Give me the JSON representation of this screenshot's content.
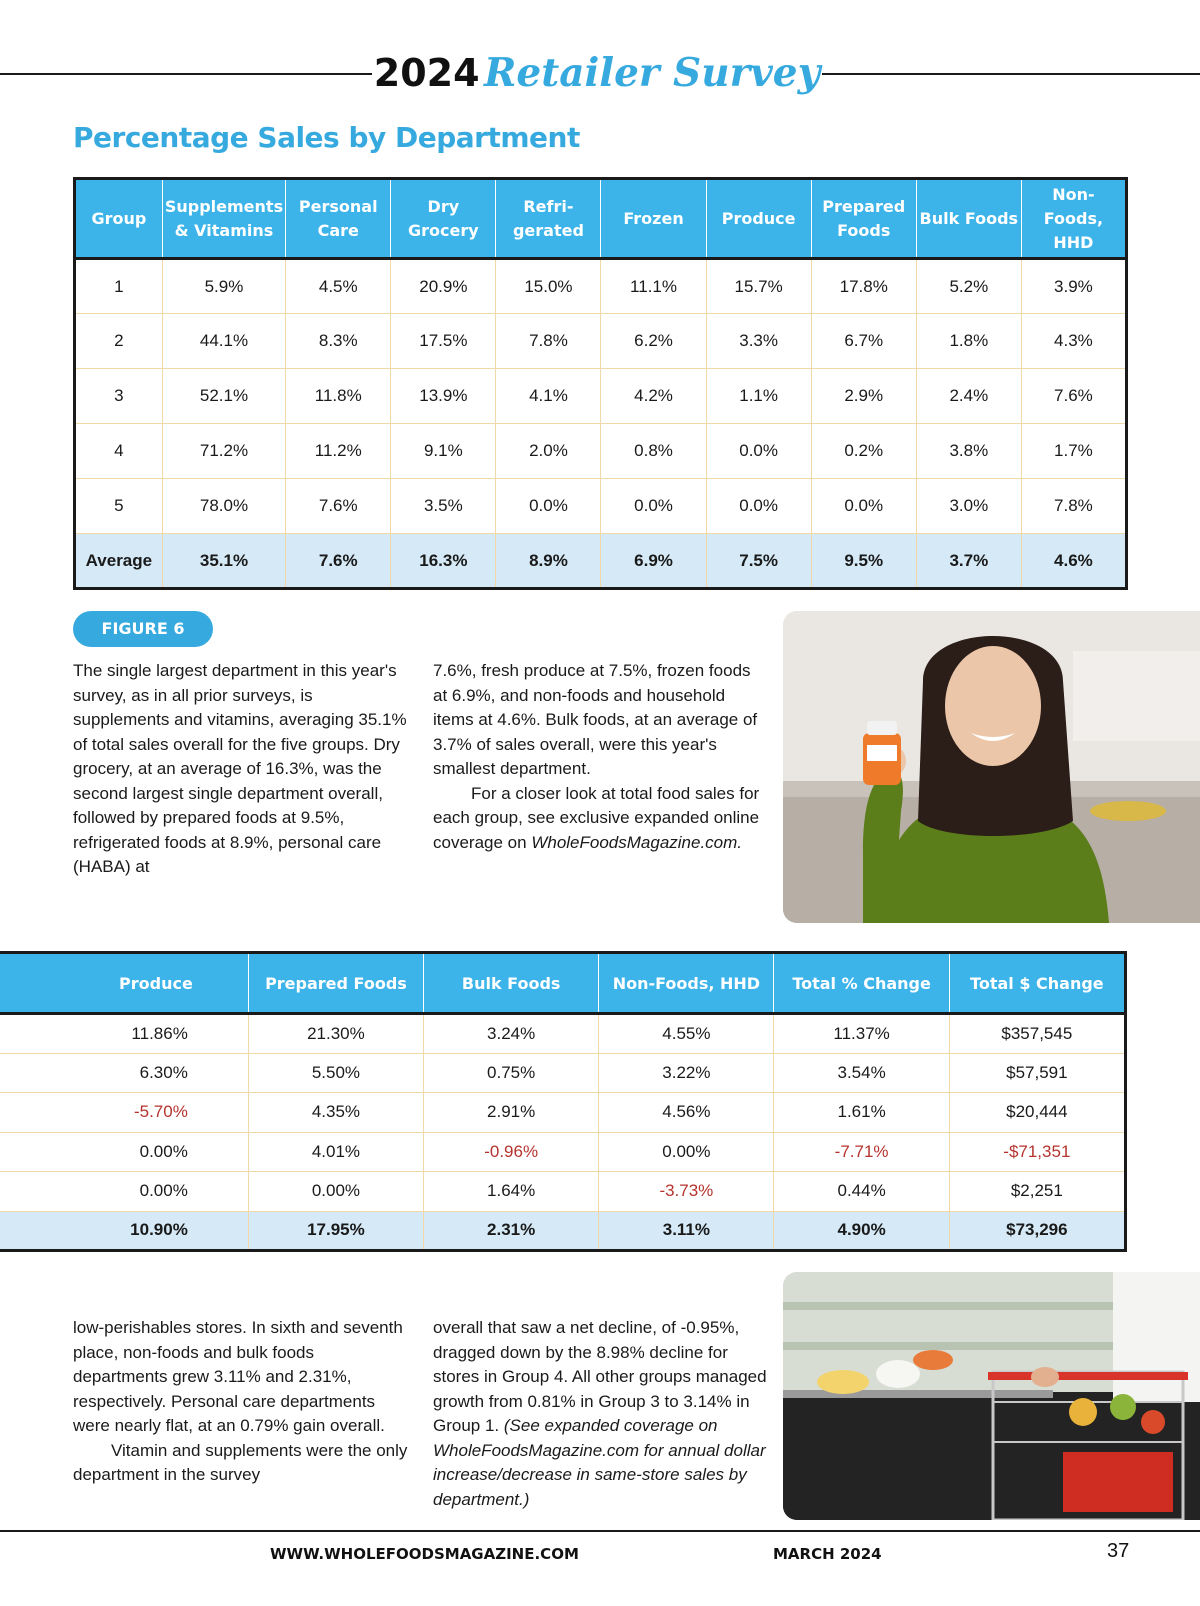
{
  "header": {
    "year": "2024",
    "title": "Retailer Survey"
  },
  "section_title": "Percentage Sales by Department",
  "table1": {
    "headers": [
      "Group",
      "Supplements & Vitamins",
      "Personal Care",
      "Dry Grocery",
      "Refri-\ngerated",
      "Frozen",
      "Produce",
      "Prepared Foods",
      "Bulk Foods",
      "Non-\nFoods,\nHHD"
    ],
    "rows": [
      [
        "1",
        "5.9%",
        "4.5%",
        "20.9%",
        "15.0%",
        "11.1%",
        "15.7%",
        "17.8%",
        "5.2%",
        "3.9%"
      ],
      [
        "2",
        "44.1%",
        "8.3%",
        "17.5%",
        "7.8%",
        "6.2%",
        "3.3%",
        "6.7%",
        "1.8%",
        "4.3%"
      ],
      [
        "3",
        "52.1%",
        "11.8%",
        "13.9%",
        "4.1%",
        "4.2%",
        "1.1%",
        "2.9%",
        "2.4%",
        "7.6%"
      ],
      [
        "4",
        "71.2%",
        "11.2%",
        "9.1%",
        "2.0%",
        "0.8%",
        "0.0%",
        "0.2%",
        "3.8%",
        "1.7%"
      ],
      [
        "5",
        "78.0%",
        "7.6%",
        "3.5%",
        "0.0%",
        "0.0%",
        "0.0%",
        "0.0%",
        "3.0%",
        "7.8%"
      ]
    ],
    "average": [
      "Average",
      "35.1%",
      "7.6%",
      "16.3%",
      "8.9%",
      "6.9%",
      "7.5%",
      "9.5%",
      "3.7%",
      "4.6%"
    ]
  },
  "figure_label": "FIGURE 6",
  "body1": {
    "col1": "The single largest department in this year's survey, as in all prior surveys, is supplements and vitamins, averaging 35.1% of total sales overall for the five groups. Dry grocery, at an average of 16.3%, was the second largest single department overall, followed by prepared foods at 9.5%, refrigerated foods at 8.9%, personal care (HABA) at",
    "col2_p1": "7.6%, fresh produce at 7.5%, frozen foods at 6.9%, and non-foods and household items at 4.6%. Bulk foods, at an average of 3.7% of sales overall, were this year's smallest department.",
    "col2_p2": "For a closer look at total food sales for each group, see exclusive expanded online coverage on",
    "col2_link": "WholeFoodsMagazine.com."
  },
  "table2": {
    "headers": [
      "Produce",
      "Prepared Foods",
      "Bulk Foods",
      "Non-Foods, HHD",
      "Total % Change",
      "Total $ Change"
    ],
    "rows": [
      [
        {
          "v": "11.86%",
          "neg": false
        },
        {
          "v": "21.30%",
          "neg": false
        },
        {
          "v": "3.24%",
          "neg": false
        },
        {
          "v": "4.55%",
          "neg": false
        },
        {
          "v": "11.37%",
          "neg": false
        },
        {
          "v": "$357,545",
          "neg": false
        }
      ],
      [
        {
          "v": "6.30%",
          "neg": false
        },
        {
          "v": "5.50%",
          "neg": false
        },
        {
          "v": "0.75%",
          "neg": false
        },
        {
          "v": "3.22%",
          "neg": false
        },
        {
          "v": "3.54%",
          "neg": false
        },
        {
          "v": "$57,591",
          "neg": false
        }
      ],
      [
        {
          "v": "-5.70%",
          "neg": true
        },
        {
          "v": "4.35%",
          "neg": false
        },
        {
          "v": "2.91%",
          "neg": false
        },
        {
          "v": "4.56%",
          "neg": false
        },
        {
          "v": "1.61%",
          "neg": false
        },
        {
          "v": "$20,444",
          "neg": false
        }
      ],
      [
        {
          "v": "0.00%",
          "neg": false
        },
        {
          "v": "4.01%",
          "neg": false
        },
        {
          "v": "-0.96%",
          "neg": true
        },
        {
          "v": "0.00%",
          "neg": false
        },
        {
          "v": "-7.71%",
          "neg": true
        },
        {
          "v": "-$71,351",
          "neg": true
        }
      ],
      [
        {
          "v": "0.00%",
          "neg": false
        },
        {
          "v": "0.00%",
          "neg": false
        },
        {
          "v": "1.64%",
          "neg": false
        },
        {
          "v": "-3.73%",
          "neg": true
        },
        {
          "v": "0.44%",
          "neg": false
        },
        {
          "v": "$2,251",
          "neg": false
        }
      ]
    ],
    "average": [
      "10.90%",
      "17.95%",
      "2.31%",
      "3.11%",
      "4.90%",
      "$73,296"
    ]
  },
  "body2": {
    "col1_p1": "low-perishables stores. In sixth and seventh place, non-foods and bulk foods departments grew 3.11% and 2.31%, respectively. Personal care departments were nearly flat, at an 0.79% gain overall.",
    "col1_p2": "Vitamin and supplements were the only department in the survey",
    "col2_text": "overall that saw a net decline, of -0.95%, dragged down by the 8.98% decline for stores in Group 4. All other groups managed growth from 0.81% in Group 3 to 3.14% in Group 1.",
    "col2_italic": "(See expanded coverage on WholeFoodsMagazine.com for annual dollar increase/decrease in same-store sales by department.)"
  },
  "footer": {
    "url": "WWW.WHOLEFOODSMAGAZINE.COM",
    "date": "MARCH 2024",
    "page": "37"
  },
  "colors": {
    "accent": "#36a9df",
    "header_fill": "#3cb4ea",
    "avg_row": "#d5e9f6",
    "grid": "#f0d9a6",
    "negative": "#b5332e"
  }
}
